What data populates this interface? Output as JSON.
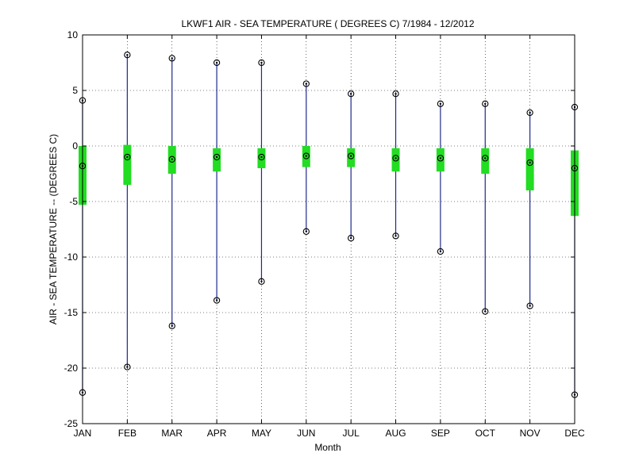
{
  "chart_data": {
    "type": "box",
    "title": "LKWF1  AIR - SEA TEMPERATURE ( DEGREES C) 7/1984 - 12/2012",
    "xlabel": "Month",
    "ylabel": "AIR - SEA TEMPERATURE -- (DEGREES C)",
    "categories": [
      "JAN",
      "FEB",
      "MAR",
      "APR",
      "MAY",
      "JUN",
      "JUL",
      "AUG",
      "SEP",
      "OCT",
      "NOV",
      "DEC"
    ],
    "ylim": [
      -25,
      10
    ],
    "yticks": [
      -25,
      -20,
      -15,
      -10,
      -5,
      0,
      5,
      10
    ],
    "grid": true,
    "colors": {
      "whisker": "#1f2a8a",
      "box": "#22dd22",
      "marker": "#000000"
    },
    "series": [
      {
        "min": [
          -22.2,
          -19.9,
          -16.2,
          -13.9,
          -12.2,
          -7.7,
          -8.3,
          -8.1,
          -9.5,
          -14.9,
          -14.4,
          -22.4
        ],
        "q1": [
          -5.3,
          -3.5,
          -2.5,
          -2.3,
          -2.0,
          -1.9,
          -1.9,
          -2.3,
          -2.3,
          -2.5,
          -4.0,
          -6.3
        ],
        "median": [
          -1.8,
          -1.0,
          -1.2,
          -1.0,
          -1.0,
          -0.9,
          -0.9,
          -1.1,
          -1.1,
          -1.1,
          -1.5,
          -2.0
        ],
        "q3": [
          0.0,
          0.1,
          0.0,
          -0.2,
          -0.2,
          0.0,
          -0.2,
          -0.2,
          -0.2,
          -0.2,
          -0.2,
          -0.4
        ],
        "max": [
          4.1,
          8.2,
          7.9,
          7.5,
          7.5,
          5.6,
          4.7,
          4.7,
          3.8,
          3.8,
          3.0,
          3.5
        ]
      }
    ]
  }
}
